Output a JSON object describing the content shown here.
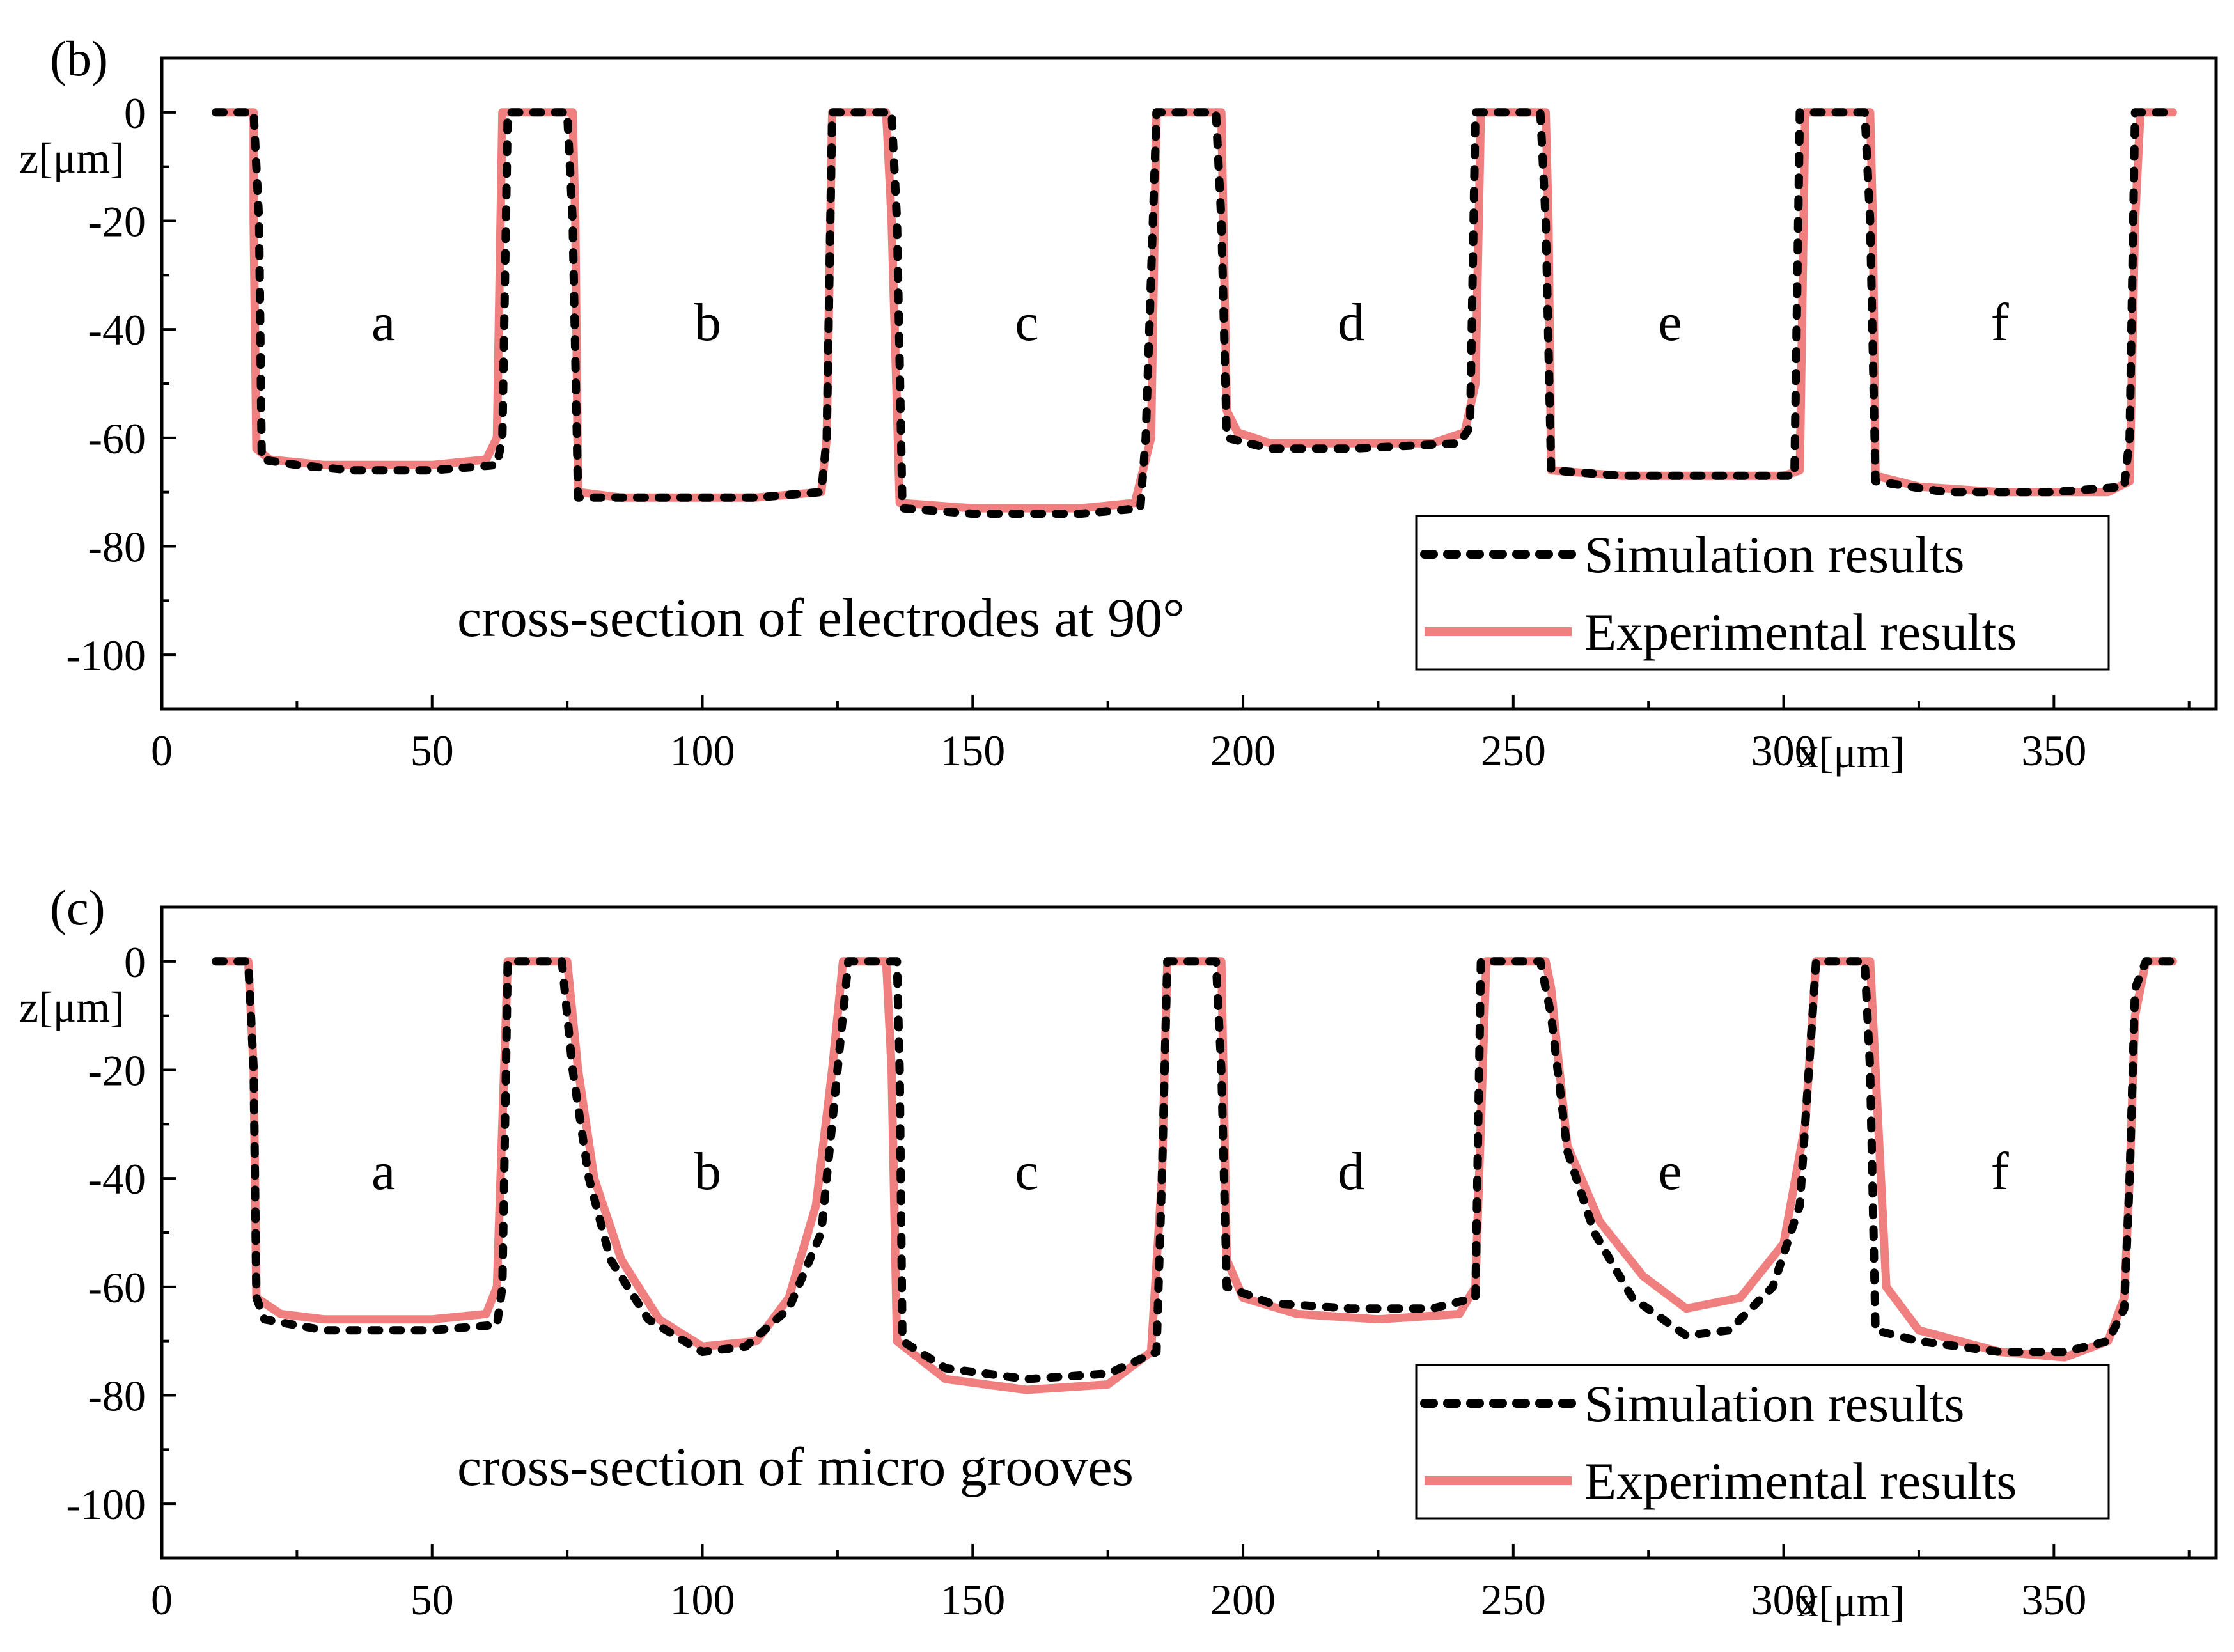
{
  "chart_data": [
    {
      "type": "line",
      "panel_label": "(b)",
      "annotation": "cross-section of electrodes at 90°",
      "xlabel": "x[μm]",
      "ylabel": "z[μm]",
      "xlim": [
        0,
        380
      ],
      "ylim": [
        -110,
        10
      ],
      "xticks": [
        0,
        50,
        100,
        150,
        200,
        250,
        300,
        350
      ],
      "yticks": [
        0,
        -20,
        -40,
        -60,
        -80,
        -100
      ],
      "region_labels": [
        {
          "text": "a",
          "x": 41,
          "y": -42
        },
        {
          "text": "b",
          "x": 101,
          "y": -42
        },
        {
          "text": "c",
          "x": 160,
          "y": -42
        },
        {
          "text": "d",
          "x": 220,
          "y": -42
        },
        {
          "text": "e",
          "x": 279,
          "y": -42
        },
        {
          "text": "f",
          "x": 340,
          "y": -42
        }
      ],
      "legend": {
        "position": "bottom-right",
        "entries": [
          "Simulation results",
          "Experimental results"
        ]
      },
      "series": [
        {
          "name": "Simulation results",
          "style": "dotted",
          "color": "#000000",
          "points": [
            [
              10,
              0
            ],
            [
              17,
              0
            ],
            [
              18,
              -20
            ],
            [
              18.5,
              -64
            ],
            [
              25,
              -65
            ],
            [
              35,
              -66
            ],
            [
              50,
              -66
            ],
            [
              62,
              -65
            ],
            [
              63,
              -60
            ],
            [
              64,
              0
            ],
            [
              75,
              0
            ],
            [
              76,
              -20
            ],
            [
              77,
              -71
            ],
            [
              90,
              -71
            ],
            [
              110,
              -71
            ],
            [
              122,
              -70
            ],
            [
              123,
              -60
            ],
            [
              124,
              0
            ],
            [
              135,
              0
            ],
            [
              136,
              -20
            ],
            [
              137,
              -73
            ],
            [
              150,
              -74
            ],
            [
              170,
              -74
            ],
            [
              181,
              -73
            ],
            [
              182,
              -60
            ],
            [
              184,
              0
            ],
            [
              195,
              0
            ],
            [
              196,
              -20
            ],
            [
              197,
              -60
            ],
            [
              205,
              -62
            ],
            [
              220,
              -62
            ],
            [
              240,
              -61
            ],
            [
              242,
              -58
            ],
            [
              243,
              0
            ],
            [
              255,
              0
            ],
            [
              256,
              -20
            ],
            [
              257,
              -66
            ],
            [
              270,
              -67
            ],
            [
              290,
              -67
            ],
            [
              302,
              -67
            ],
            [
              303,
              0
            ],
            [
              315,
              0
            ],
            [
              316,
              -20
            ],
            [
              317,
              -68
            ],
            [
              330,
              -70
            ],
            [
              350,
              -70
            ],
            [
              363,
              -69
            ],
            [
              364,
              -60
            ],
            [
              365,
              0
            ],
            [
              372,
              0
            ]
          ]
        },
        {
          "name": "Experimental results",
          "style": "solid",
          "color": "#f08080",
          "points": [
            [
              10,
              0
            ],
            [
              17,
              0
            ],
            [
              17,
              -20
            ],
            [
              17.5,
              -62
            ],
            [
              20,
              -64
            ],
            [
              30,
              -65
            ],
            [
              50,
              -65
            ],
            [
              60,
              -64
            ],
            [
              62,
              -60
            ],
            [
              63,
              0
            ],
            [
              76,
              0
            ],
            [
              76.5,
              -20
            ],
            [
              77,
              -70
            ],
            [
              85,
              -71
            ],
            [
              110,
              -71
            ],
            [
              122,
              -70
            ],
            [
              123,
              -60
            ],
            [
              124,
              0
            ],
            [
              134,
              0
            ],
            [
              135,
              -20
            ],
            [
              136.5,
              -72
            ],
            [
              150,
              -73
            ],
            [
              170,
              -73
            ],
            [
              180,
              -72
            ],
            [
              183,
              -60
            ],
            [
              184,
              0
            ],
            [
              196,
              0
            ],
            [
              197,
              -55
            ],
            [
              199,
              -59
            ],
            [
              205,
              -61
            ],
            [
              220,
              -61
            ],
            [
              235,
              -61
            ],
            [
              241,
              -59
            ],
            [
              243,
              -50
            ],
            [
              244,
              0
            ],
            [
              256,
              0
            ],
            [
              256.5,
              -20
            ],
            [
              257,
              -66
            ],
            [
              270,
              -67
            ],
            [
              300,
              -67
            ],
            [
              303,
              -66
            ],
            [
              304,
              0
            ],
            [
              316,
              0
            ],
            [
              316.5,
              -20
            ],
            [
              317,
              -67
            ],
            [
              325,
              -69
            ],
            [
              340,
              -70
            ],
            [
              360,
              -70
            ],
            [
              364,
              -68
            ],
            [
              365,
              -20
            ],
            [
              366,
              0
            ],
            [
              372,
              0
            ]
          ]
        }
      ]
    },
    {
      "type": "line",
      "panel_label": "(c)",
      "annotation": "cross-section of micro grooves",
      "xlabel": "x[μm]",
      "ylabel": "z[μm]",
      "xlim": [
        0,
        380
      ],
      "ylim": [
        -110,
        10
      ],
      "xticks": [
        0,
        50,
        100,
        150,
        200,
        250,
        300,
        350
      ],
      "yticks": [
        0,
        -20,
        -40,
        -60,
        -80,
        -100
      ],
      "region_labels": [
        {
          "text": "a",
          "x": 41,
          "y": -42
        },
        {
          "text": "b",
          "x": 101,
          "y": -42
        },
        {
          "text": "c",
          "x": 160,
          "y": -42
        },
        {
          "text": "d",
          "x": 220,
          "y": -42
        },
        {
          "text": "e",
          "x": 279,
          "y": -42
        },
        {
          "text": "f",
          "x": 340,
          "y": -42
        }
      ],
      "legend": {
        "position": "bottom-right",
        "entries": [
          "Simulation results",
          "Experimental results"
        ]
      },
      "series": [
        {
          "name": "Simulation results",
          "style": "dotted",
          "color": "#000000",
          "points": [
            [
              10,
              0
            ],
            [
              16,
              0
            ],
            [
              17,
              -20
            ],
            [
              17.5,
              -62
            ],
            [
              19,
              -66
            ],
            [
              30,
              -68
            ],
            [
              50,
              -68
            ],
            [
              62,
              -67
            ],
            [
              63,
              -60
            ],
            [
              64,
              0
            ],
            [
              74,
              0
            ],
            [
              76,
              -20
            ],
            [
              79,
              -40
            ],
            [
              83,
              -55
            ],
            [
              90,
              -66
            ],
            [
              100,
              -72
            ],
            [
              108,
              -71
            ],
            [
              116,
              -64
            ],
            [
              122,
              -50
            ],
            [
              125,
              -20
            ],
            [
              127,
              0
            ],
            [
              136,
              0
            ],
            [
              136.5,
              -20
            ],
            [
              137,
              -70
            ],
            [
              145,
              -75
            ],
            [
              160,
              -77
            ],
            [
              175,
              -76
            ],
            [
              184,
              -72
            ],
            [
              185,
              -40
            ],
            [
              186,
              0
            ],
            [
              195,
              0
            ],
            [
              196,
              -20
            ],
            [
              197,
              -60
            ],
            [
              205,
              -63
            ],
            [
              220,
              -64
            ],
            [
              235,
              -64
            ],
            [
              243,
              -62
            ],
            [
              244,
              0
            ],
            [
              255,
              0
            ],
            [
              257,
              -10
            ],
            [
              260,
              -35
            ],
            [
              265,
              -50
            ],
            [
              272,
              -62
            ],
            [
              282,
              -69
            ],
            [
              290,
              -68
            ],
            [
              298,
              -60
            ],
            [
              303,
              -45
            ],
            [
              305,
              -15
            ],
            [
              306,
              0
            ],
            [
              315,
              0
            ],
            [
              316,
              -20
            ],
            [
              317,
              -68
            ],
            [
              325,
              -70
            ],
            [
              340,
              -72
            ],
            [
              352,
              -72
            ],
            [
              360,
              -70
            ],
            [
              363,
              -64
            ],
            [
              364,
              -40
            ],
            [
              365,
              -5
            ],
            [
              367,
              0
            ],
            [
              372,
              0
            ]
          ]
        },
        {
          "name": "Experimental results",
          "style": "solid",
          "color": "#f08080",
          "points": [
            [
              10,
              0
            ],
            [
              16,
              0
            ],
            [
              17,
              -20
            ],
            [
              17.5,
              -62
            ],
            [
              22,
              -65
            ],
            [
              30,
              -66
            ],
            [
              50,
              -66
            ],
            [
              60,
              -65
            ],
            [
              62,
              -60
            ],
            [
              64,
              0
            ],
            [
              75,
              0
            ],
            [
              77,
              -20
            ],
            [
              80,
              -40
            ],
            [
              85,
              -55
            ],
            [
              92,
              -66
            ],
            [
              100,
              -71
            ],
            [
              110,
              -70
            ],
            [
              116,
              -62
            ],
            [
              121,
              -45
            ],
            [
              124,
              -20
            ],
            [
              126,
              0
            ],
            [
              134,
              0
            ],
            [
              135,
              -20
            ],
            [
              136,
              -70
            ],
            [
              145,
              -77
            ],
            [
              160,
              -79
            ],
            [
              175,
              -78
            ],
            [
              183,
              -72
            ],
            [
              185,
              -40
            ],
            [
              186,
              0
            ],
            [
              196,
              0
            ],
            [
              197,
              -55
            ],
            [
              200,
              -62
            ],
            [
              210,
              -65
            ],
            [
              225,
              -66
            ],
            [
              240,
              -65
            ],
            [
              243,
              -60
            ],
            [
              245,
              0
            ],
            [
              256,
              0
            ],
            [
              257,
              -5
            ],
            [
              258,
              -15
            ],
            [
              260,
              -34
            ],
            [
              266,
              -48
            ],
            [
              274,
              -58
            ],
            [
              282,
              -64
            ],
            [
              292,
              -62
            ],
            [
              300,
              -52
            ],
            [
              304,
              -30
            ],
            [
              306,
              0
            ],
            [
              316,
              0
            ],
            [
              317,
              -20
            ],
            [
              319,
              -60
            ],
            [
              325,
              -68
            ],
            [
              340,
              -72
            ],
            [
              352,
              -73
            ],
            [
              360,
              -70
            ],
            [
              363,
              -62
            ],
            [
              364,
              -40
            ],
            [
              365,
              -10
            ],
            [
              367,
              0
            ],
            [
              372,
              0
            ]
          ]
        }
      ]
    }
  ]
}
